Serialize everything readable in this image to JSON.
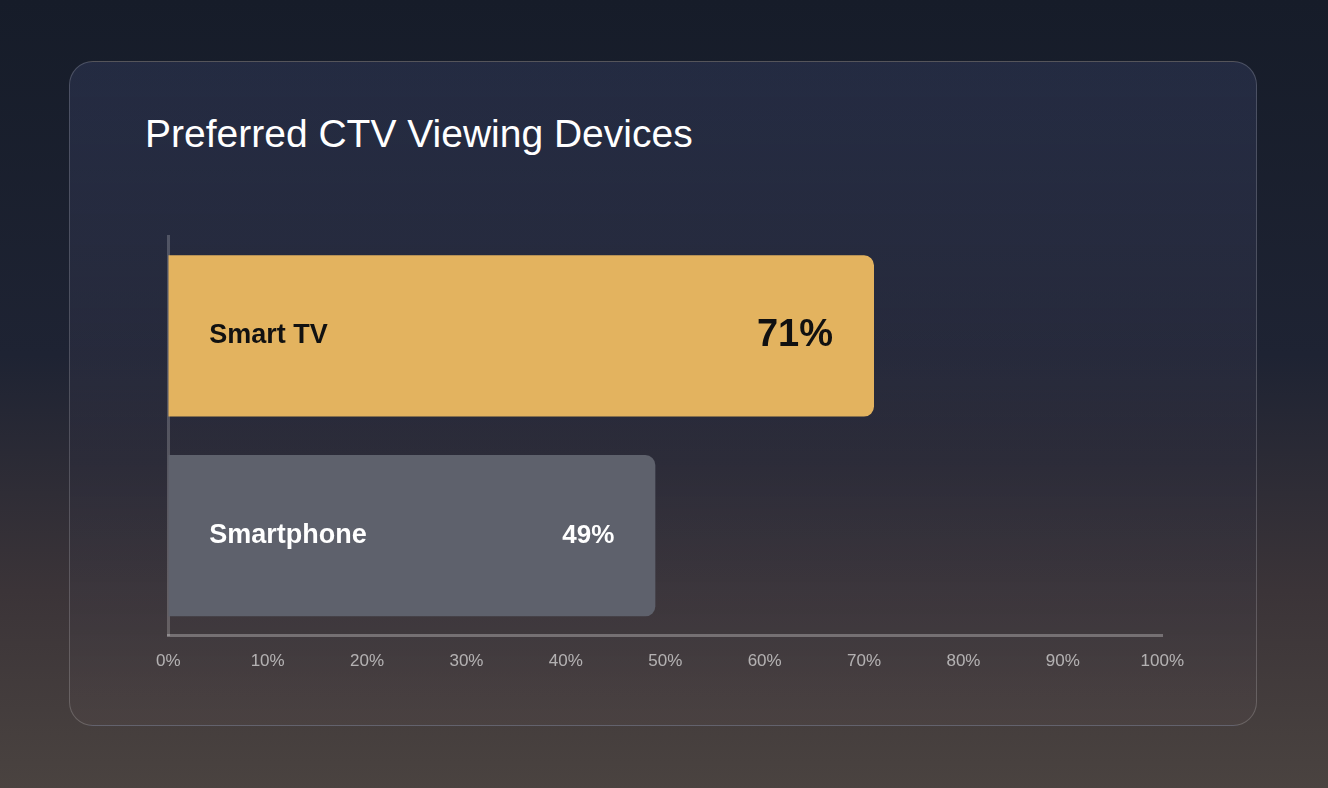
{
  "chart_data": {
    "type": "bar",
    "orientation": "horizontal",
    "title": "Preferred CTV Viewing Devices",
    "categories": [
      "Smart TV",
      "Smartphone"
    ],
    "values": [
      71,
      49
    ],
    "value_labels": [
      "71%",
      "49%"
    ],
    "data_labels": true,
    "colors": [
      "#e3b35f",
      "#5e616c"
    ],
    "xlim": [
      0,
      100
    ],
    "xticks": [
      {
        "value": 0,
        "label": "0%"
      },
      {
        "value": 10,
        "label": "10%"
      },
      {
        "value": 20,
        "label": "20%"
      },
      {
        "value": 30,
        "label": "30%"
      },
      {
        "value": 40,
        "label": "40%"
      },
      {
        "value": 50,
        "label": "50%"
      },
      {
        "value": 60,
        "label": "60%"
      },
      {
        "value": 70,
        "label": "70%"
      },
      {
        "value": 80,
        "label": "80%"
      },
      {
        "value": 90,
        "label": "90%"
      },
      {
        "value": 100,
        "label": "100%"
      }
    ],
    "grid": false,
    "tick_labels": "x"
  }
}
